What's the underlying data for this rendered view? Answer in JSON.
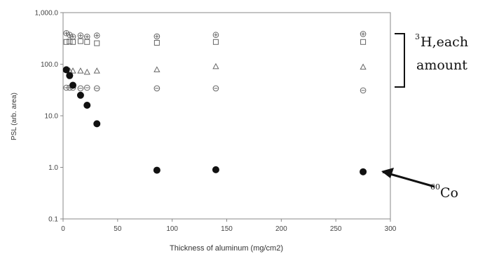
{
  "chart_data": {
    "type": "scatter",
    "xlabel": "Thickness of aluminum (mg/cm2)",
    "ylabel": "PSL (arb. area)",
    "xlim": [
      0,
      300
    ],
    "ylim": [
      0.1,
      1000
    ],
    "yscale": "log",
    "grid": false,
    "x_ticks": [
      "0",
      "50",
      "100",
      "150",
      "200",
      "250",
      "300"
    ],
    "x_tick_values": [
      0,
      50,
      100,
      150,
      200,
      250,
      300
    ],
    "y_ticks": [
      "0.1",
      "1.0",
      "10.0",
      "100.0",
      "1,000.0"
    ],
    "y_tick_values": [
      0.1,
      1,
      10,
      100,
      1000
    ],
    "series": [
      {
        "marker": "open-circle-plus",
        "points": [
          [
            3,
            400
          ],
          [
            6,
            370
          ],
          [
            9,
            340
          ],
          [
            16,
            360
          ],
          [
            22,
            340
          ],
          [
            31,
            360
          ],
          [
            86,
            345
          ],
          [
            140,
            370
          ],
          [
            275,
            385
          ]
        ]
      },
      {
        "marker": "open-square",
        "points": [
          [
            3,
            270
          ],
          [
            6,
            275
          ],
          [
            9,
            270
          ],
          [
            16,
            280
          ],
          [
            22,
            270
          ],
          [
            31,
            255
          ],
          [
            86,
            260
          ],
          [
            140,
            270
          ],
          [
            275,
            270
          ]
        ]
      },
      {
        "marker": "open-triangle",
        "points": [
          [
            3,
            78
          ],
          [
            6,
            74
          ],
          [
            9,
            74
          ],
          [
            16,
            74
          ],
          [
            22,
            70
          ],
          [
            31,
            74
          ],
          [
            86,
            78
          ],
          [
            140,
            90
          ],
          [
            275,
            88
          ]
        ]
      },
      {
        "marker": "open-circle-minus",
        "points": [
          [
            3,
            35
          ],
          [
            6,
            35
          ],
          [
            9,
            35
          ],
          [
            16,
            34
          ],
          [
            22,
            35
          ],
          [
            31,
            34
          ],
          [
            86,
            34
          ],
          [
            140,
            34
          ],
          [
            275,
            31
          ]
        ]
      },
      {
        "marker": "filled-circle",
        "points": [
          [
            3,
            78
          ],
          [
            6,
            60
          ],
          [
            9,
            39
          ],
          [
            16,
            25
          ],
          [
            22,
            16
          ],
          [
            31,
            7
          ],
          [
            86,
            0.88
          ],
          [
            140,
            0.9
          ],
          [
            275,
            0.82
          ]
        ]
      }
    ],
    "annotations": {
      "bracket_text_sup": "3",
      "bracket_text_line1": "H,each",
      "bracket_text_line2": "amount",
      "arrow_text_sup": "60",
      "arrow_text": "Co"
    }
  },
  "colors": {
    "open_marker": "#666666",
    "filled_marker": "#111111",
    "frame": "#888888",
    "annotation": "#111111"
  }
}
